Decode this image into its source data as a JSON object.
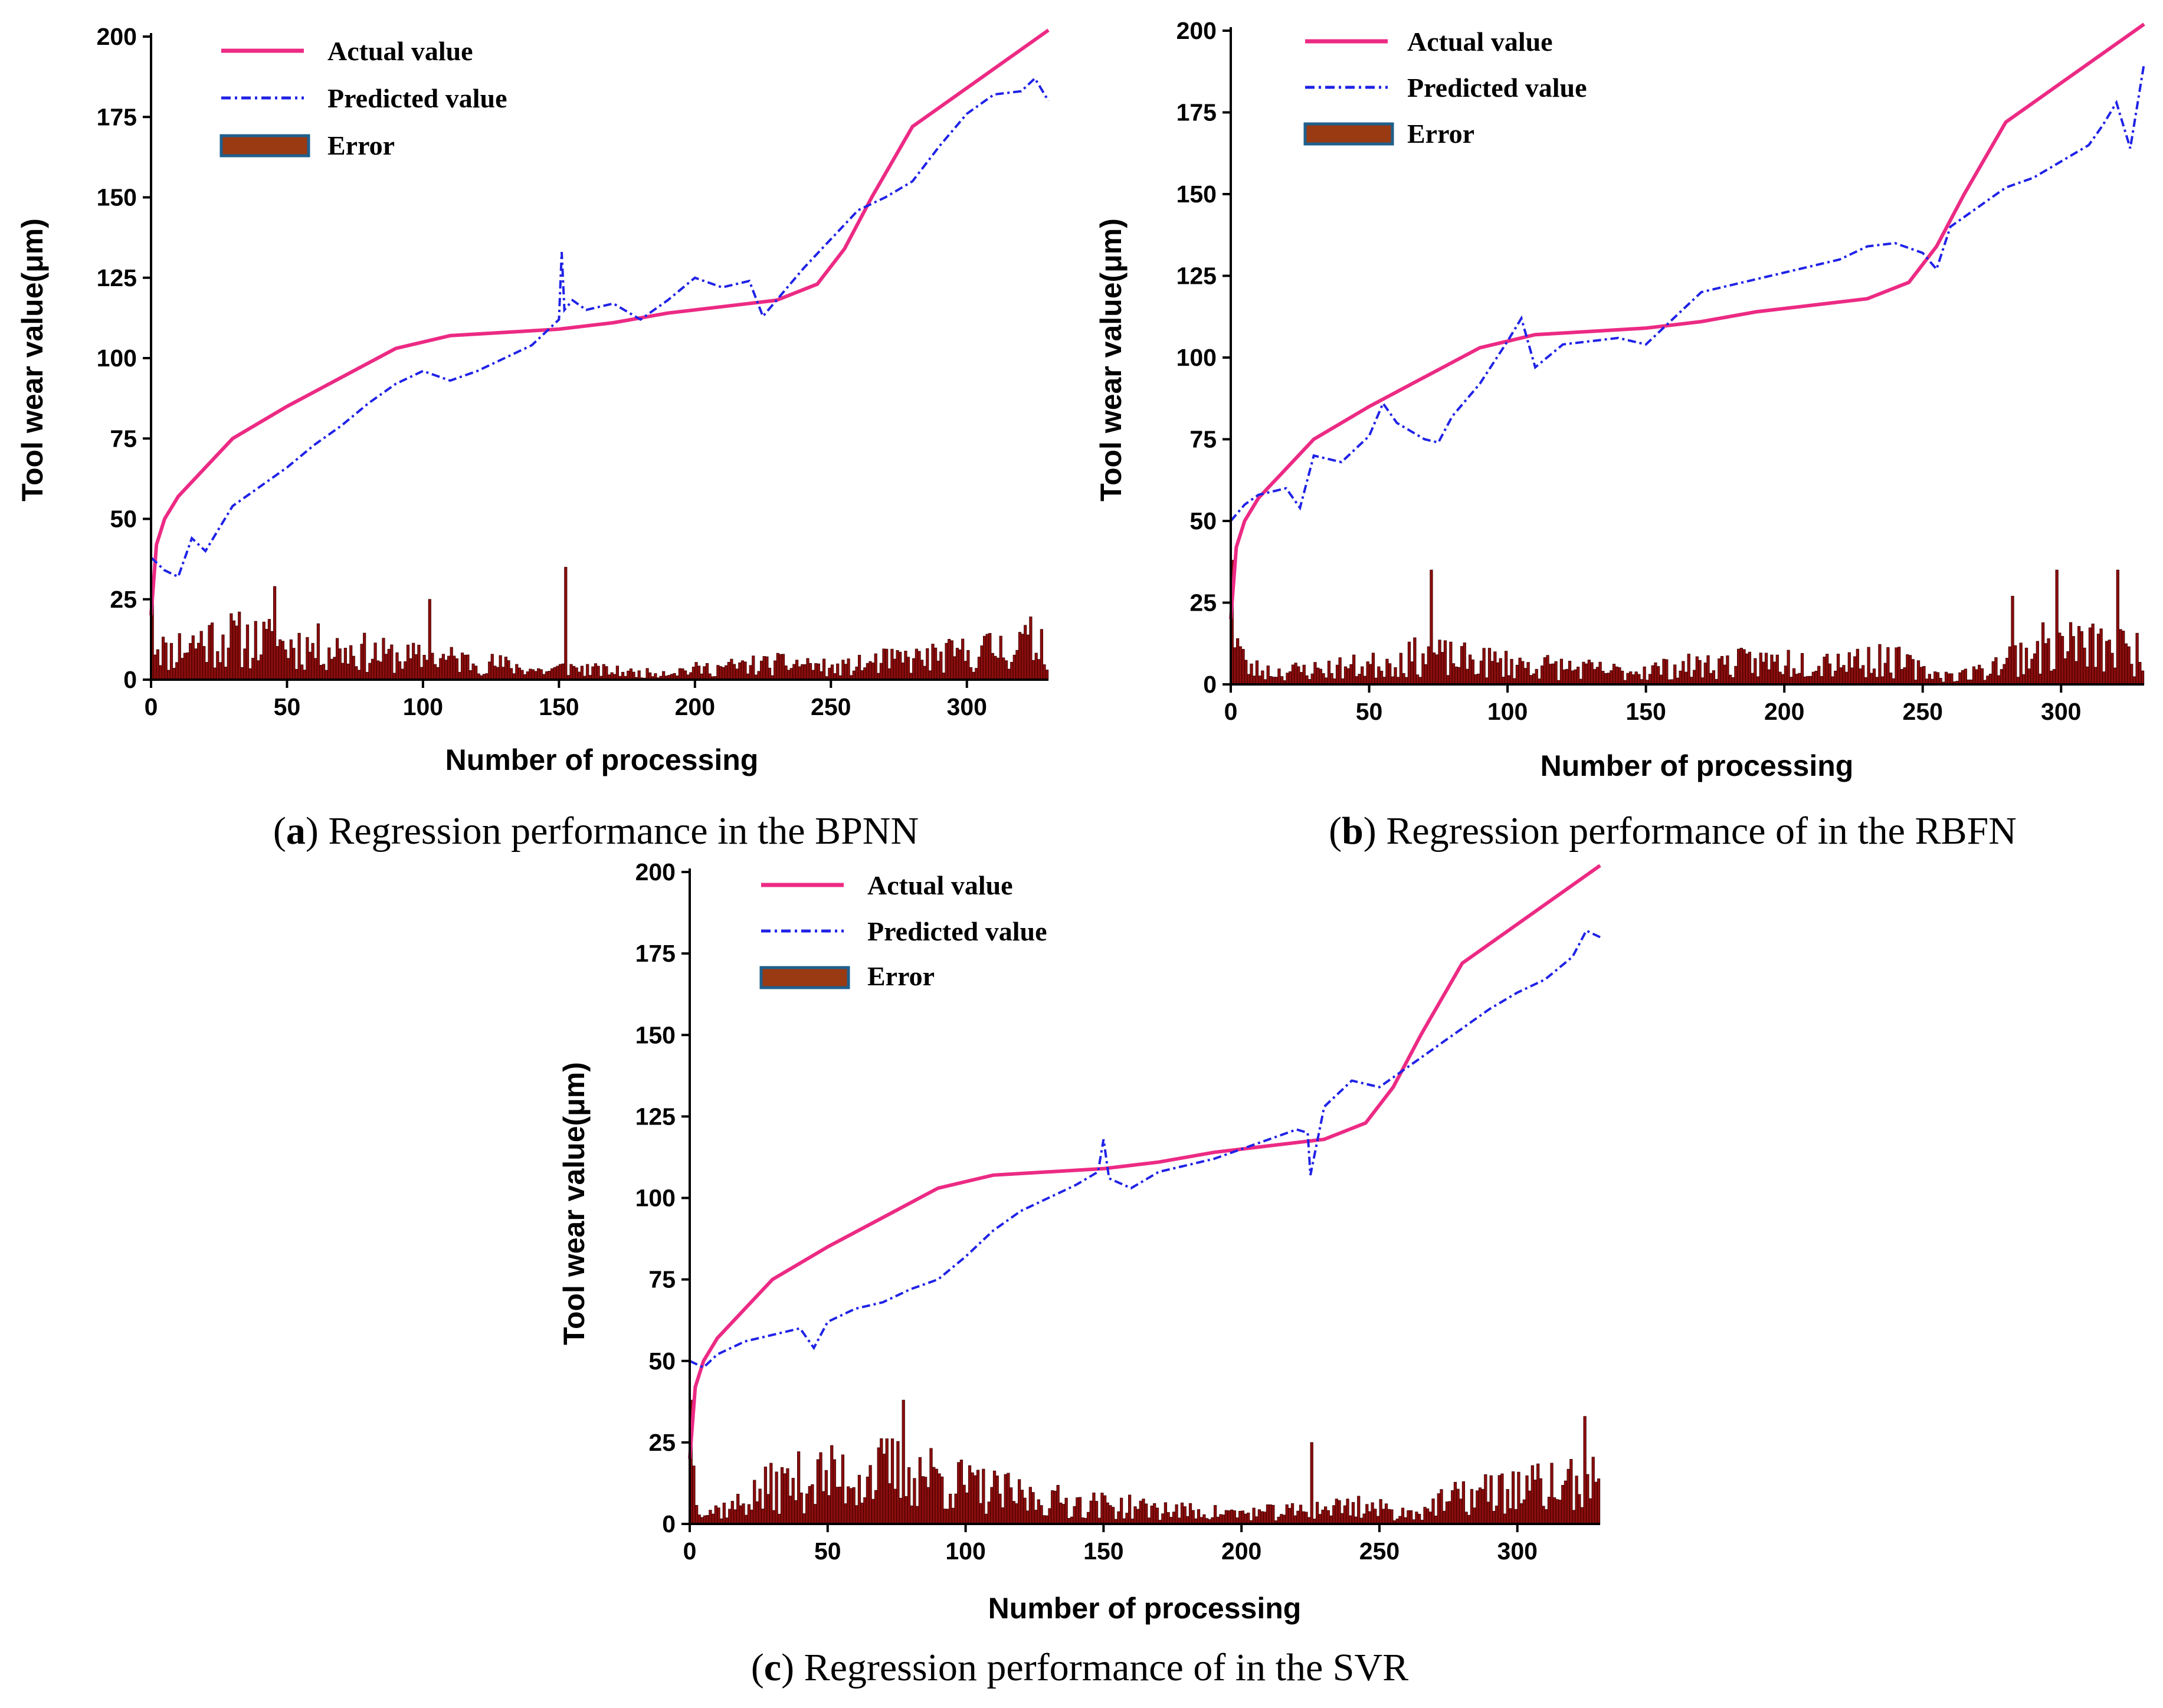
{
  "colors": {
    "actual": "#ec2a84",
    "predicted": "#1f22e6",
    "error_fill": "#8b0d0d",
    "error_stroke": "#3a0000",
    "legend_error_fill": "#9a3a12",
    "legend_error_border": "#1f5f8c"
  },
  "chart_data": [
    {
      "id": "a",
      "type": "line+bar",
      "title": "",
      "caption": {
        "letter": "a",
        "open": "(",
        "close": ")",
        "text": " Regression performance in the BPNN"
      },
      "xlabel": "Number of processing",
      "ylabel": "Tool wear value(μm)",
      "xlim": [
        0,
        330
      ],
      "ylim": [
        0,
        200
      ],
      "xticks": [
        0,
        50,
        100,
        150,
        200,
        250,
        300
      ],
      "yticks": [
        0,
        25,
        50,
        75,
        100,
        125,
        150,
        175,
        200
      ],
      "legend": {
        "position": "top-left",
        "entries": [
          "Actual value",
          "Predicted value",
          "Error"
        ]
      },
      "series": [
        {
          "name": "Actual value",
          "style": "solid",
          "x": [
            0,
            2,
            5,
            10,
            20,
            30,
            50,
            70,
            90,
            110,
            130,
            150,
            170,
            190,
            210,
            230,
            245,
            255,
            265,
            280,
            300,
            330
          ],
          "y": [
            20,
            42,
            50,
            57,
            66,
            75,
            85,
            94,
            103,
            107,
            108,
            109,
            111,
            114,
            116,
            118,
            123,
            134,
            150,
            172,
            184,
            202
          ]
        },
        {
          "name": "Predicted value",
          "style": "dash-dot",
          "x": [
            0,
            5,
            10,
            15,
            20,
            30,
            40,
            50,
            60,
            70,
            80,
            90,
            100,
            110,
            120,
            130,
            140,
            150,
            151,
            152,
            155,
            160,
            170,
            180,
            190,
            200,
            210,
            220,
            225,
            230,
            240,
            250,
            260,
            270,
            280,
            290,
            300,
            310,
            320,
            325,
            330
          ],
          "y": [
            38,
            34,
            32,
            44,
            40,
            54,
            60,
            66,
            73,
            79,
            86,
            92,
            96,
            93,
            96,
            100,
            104,
            112,
            133,
            115,
            118,
            115,
            117,
            112,
            118,
            125,
            122,
            124,
            113,
            118,
            128,
            137,
            146,
            150,
            155,
            166,
            176,
            182,
            183,
            187,
            180
          ]
        },
        {
          "name": "Error",
          "style": "bar",
          "n": 330,
          "seed": 11,
          "env_x": [
            0,
            3,
            5,
            10,
            20,
            30,
            50,
            70,
            90,
            110,
            130,
            145,
            152,
            160,
            180,
            200,
            220,
            240,
            250,
            260,
            270,
            290,
            310,
            330
          ],
          "env_y": [
            18,
            20,
            12,
            16,
            20,
            20,
            17,
            15,
            11,
            10,
            7,
            4,
            6,
            5,
            3,
            5,
            7,
            8,
            5,
            7,
            9,
            11,
            15,
            20
          ],
          "spikes": [
            [
              0,
              28
            ],
            [
              152,
              35
            ],
            [
              45,
              29
            ],
            [
              102,
              25
            ]
          ]
        }
      ]
    },
    {
      "id": "b",
      "type": "line+bar",
      "title": "",
      "caption": {
        "letter": "b",
        "open": "(",
        "close": ")",
        "text": " Regression performance of in the RBFN"
      },
      "xlabel": "Number of processing",
      "ylabel": "Tool wear value(μm)",
      "xlim": [
        0,
        330
      ],
      "ylim": [
        0,
        200
      ],
      "xticks": [
        0,
        50,
        100,
        150,
        200,
        250,
        300
      ],
      "yticks": [
        0,
        25,
        50,
        75,
        100,
        125,
        150,
        175,
        200
      ],
      "legend": {
        "position": "top-left",
        "entries": [
          "Actual value",
          "Predicted value",
          "Error"
        ]
      },
      "series": [
        {
          "name": "Actual value",
          "style": "solid",
          "x": [
            0,
            2,
            5,
            10,
            20,
            30,
            50,
            70,
            90,
            110,
            130,
            150,
            170,
            190,
            210,
            230,
            245,
            255,
            265,
            280,
            300,
            330
          ],
          "y": [
            20,
            42,
            50,
            57,
            66,
            75,
            85,
            94,
            103,
            107,
            108,
            109,
            111,
            114,
            116,
            118,
            123,
            134,
            150,
            172,
            184,
            202
          ]
        },
        {
          "name": "Predicted value",
          "style": "dash-dot",
          "x": [
            0,
            5,
            10,
            20,
            25,
            30,
            40,
            50,
            55,
            60,
            70,
            75,
            80,
            90,
            100,
            105,
            110,
            120,
            130,
            140,
            150,
            160,
            170,
            180,
            190,
            200,
            210,
            220,
            230,
            240,
            250,
            255,
            260,
            270,
            280,
            290,
            300,
            310,
            315,
            320,
            325,
            330
          ],
          "y": [
            50,
            55,
            58,
            60,
            54,
            70,
            68,
            76,
            86,
            80,
            75,
            74,
            82,
            92,
            105,
            112,
            97,
            104,
            105,
            106,
            104,
            112,
            120,
            122,
            124,
            126,
            128,
            130,
            134,
            135,
            132,
            127,
            140,
            146,
            152,
            155,
            160,
            165,
            171,
            178,
            164,
            190
          ]
        },
        {
          "name": "Error",
          "style": "bar",
          "n": 330,
          "seed": 23,
          "env_x": [
            0,
            3,
            5,
            15,
            30,
            50,
            70,
            80,
            100,
            120,
            140,
            160,
            180,
            200,
            220,
            240,
            250,
            260,
            270,
            280,
            300,
            310,
            330
          ],
          "env_y": [
            25,
            18,
            8,
            6,
            7,
            9,
            14,
            12,
            10,
            8,
            6,
            8,
            10,
            11,
            12,
            11,
            6,
            4,
            6,
            12,
            20,
            18,
            15
          ],
          "spikes": [
            [
              0,
              38
            ],
            [
              72,
              35
            ],
            [
              298,
              35
            ],
            [
              320,
              35
            ],
            [
              282,
              27
            ]
          ]
        }
      ]
    },
    {
      "id": "c",
      "type": "line+bar",
      "title": "",
      "caption": {
        "letter": "c",
        "open": "(",
        "close": ")",
        "text": " Regression performance of in the SVR"
      },
      "xlabel": "Number of processing",
      "ylabel": "Tool wear value(μm)",
      "xlim": [
        0,
        330
      ],
      "ylim": [
        0,
        200
      ],
      "xticks": [
        0,
        50,
        100,
        150,
        200,
        250,
        300
      ],
      "yticks": [
        0,
        25,
        50,
        75,
        100,
        125,
        150,
        175,
        200
      ],
      "legend": {
        "position": "top-left",
        "entries": [
          "Actual value",
          "Predicted value",
          "Error"
        ]
      },
      "series": [
        {
          "name": "Actual value",
          "style": "solid",
          "x": [
            0,
            2,
            5,
            10,
            20,
            30,
            50,
            70,
            90,
            110,
            130,
            150,
            170,
            190,
            210,
            230,
            245,
            255,
            265,
            280,
            300,
            330
          ],
          "y": [
            20,
            42,
            50,
            57,
            66,
            75,
            85,
            94,
            103,
            107,
            108,
            109,
            111,
            114,
            116,
            118,
            123,
            134,
            150,
            172,
            184,
            202
          ]
        },
        {
          "name": "Predicted value",
          "style": "dash-dot",
          "x": [
            0,
            5,
            10,
            20,
            30,
            40,
            45,
            50,
            60,
            70,
            80,
            90,
            100,
            110,
            120,
            130,
            140,
            148,
            150,
            152,
            160,
            170,
            180,
            190,
            200,
            210,
            220,
            224,
            225,
            230,
            240,
            250,
            260,
            270,
            280,
            290,
            300,
            310,
            320,
            325,
            330
          ],
          "y": [
            50,
            48,
            52,
            56,
            58,
            60,
            54,
            62,
            66,
            68,
            72,
            75,
            82,
            90,
            96,
            100,
            104,
            108,
            118,
            106,
            103,
            108,
            110,
            112,
            115,
            118,
            121,
            120,
            107,
            128,
            136,
            134,
            140,
            146,
            152,
            158,
            163,
            167,
            174,
            182,
            180
          ]
        },
        {
          "name": "Error",
          "style": "bar",
          "n": 330,
          "seed": 37,
          "env_x": [
            0,
            3,
            5,
            15,
            30,
            45,
            60,
            75,
            85,
            100,
            120,
            140,
            160,
            180,
            200,
            220,
            240,
            260,
            280,
            300,
            330
          ],
          "env_y": [
            28,
            15,
            6,
            8,
            18,
            22,
            23,
            26,
            25,
            18,
            13,
            10,
            8,
            6,
            5,
            6,
            9,
            5,
            13,
            17,
            19
          ],
          "spikes": [
            [
              0,
              38
            ],
            [
              77,
              38
            ],
            [
              225,
              25
            ],
            [
              324,
              33
            ]
          ]
        }
      ]
    }
  ]
}
